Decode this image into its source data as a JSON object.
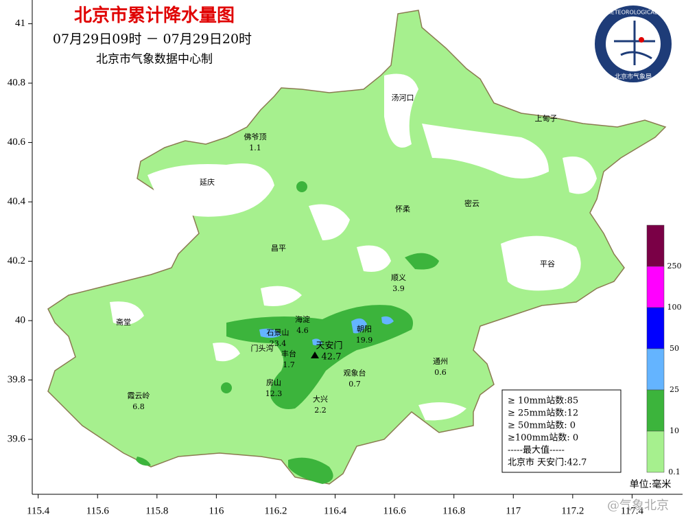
{
  "header": {
    "title": "北京市累计降水量图",
    "period": "07月29日09时 － 07月29日20时",
    "source": "北京市气象数据中心制"
  },
  "logo": {
    "ring_text": "BEIJING METEOROLOGICAL SERVICE",
    "name": "北京市气象局"
  },
  "axes": {
    "xlim": [
      115.38,
      117.57
    ],
    "ylim": [
      39.415,
      41.08
    ],
    "xticks": [
      115.4,
      115.6,
      115.8,
      116,
      116.2,
      116.4,
      116.6,
      116.8,
      117,
      117.2,
      117.4
    ],
    "yticks": [
      39.6,
      39.8,
      40,
      40.2,
      40.4,
      40.6,
      40.8,
      41
    ]
  },
  "stations": [
    {
      "name": "佛爷顶",
      "value": 1.1
    },
    {
      "name": "延庆"
    },
    {
      "name": "汤河口"
    },
    {
      "name": "上甸子"
    },
    {
      "name": "怀柔"
    },
    {
      "name": "密云"
    },
    {
      "name": "昌平"
    },
    {
      "name": "顺义",
      "value": 3.9
    },
    {
      "name": "平谷"
    },
    {
      "name": "斋堂"
    },
    {
      "name": "海淀",
      "value": 4.6
    },
    {
      "name": "石景山",
      "value": 23.4
    },
    {
      "name": "朝阳",
      "value": 19.9
    },
    {
      "name": "门头沟"
    },
    {
      "name": "丰台",
      "value": 1.7
    },
    {
      "name": "天安门",
      "value": 42.7
    },
    {
      "name": "通州",
      "value": 0.6
    },
    {
      "name": "观象台",
      "value": 0.7
    },
    {
      "name": "房山",
      "value": 12.3
    },
    {
      "name": "大兴",
      "value": 2.2
    },
    {
      "name": "霞云岭",
      "value": 6.8
    }
  ],
  "legend": {
    "levels": [
      250,
      100,
      50,
      25,
      10,
      0.1
    ],
    "colors": [
      "#7a0046",
      "#ff00ff",
      "#0000ff",
      "#64b4ff",
      "#3cb43c",
      "#a6f08e"
    ],
    "unit": "单位:毫米"
  },
  "stats": {
    "lines": [
      "≥ 10mm站数:85",
      "≥ 25mm站数:12",
      "≥ 50mm站数: 0",
      "≥100mm站数: 0",
      "-----最大值-----",
      "北京市 天安门:42.7"
    ]
  },
  "watermark": "@气象北京"
}
